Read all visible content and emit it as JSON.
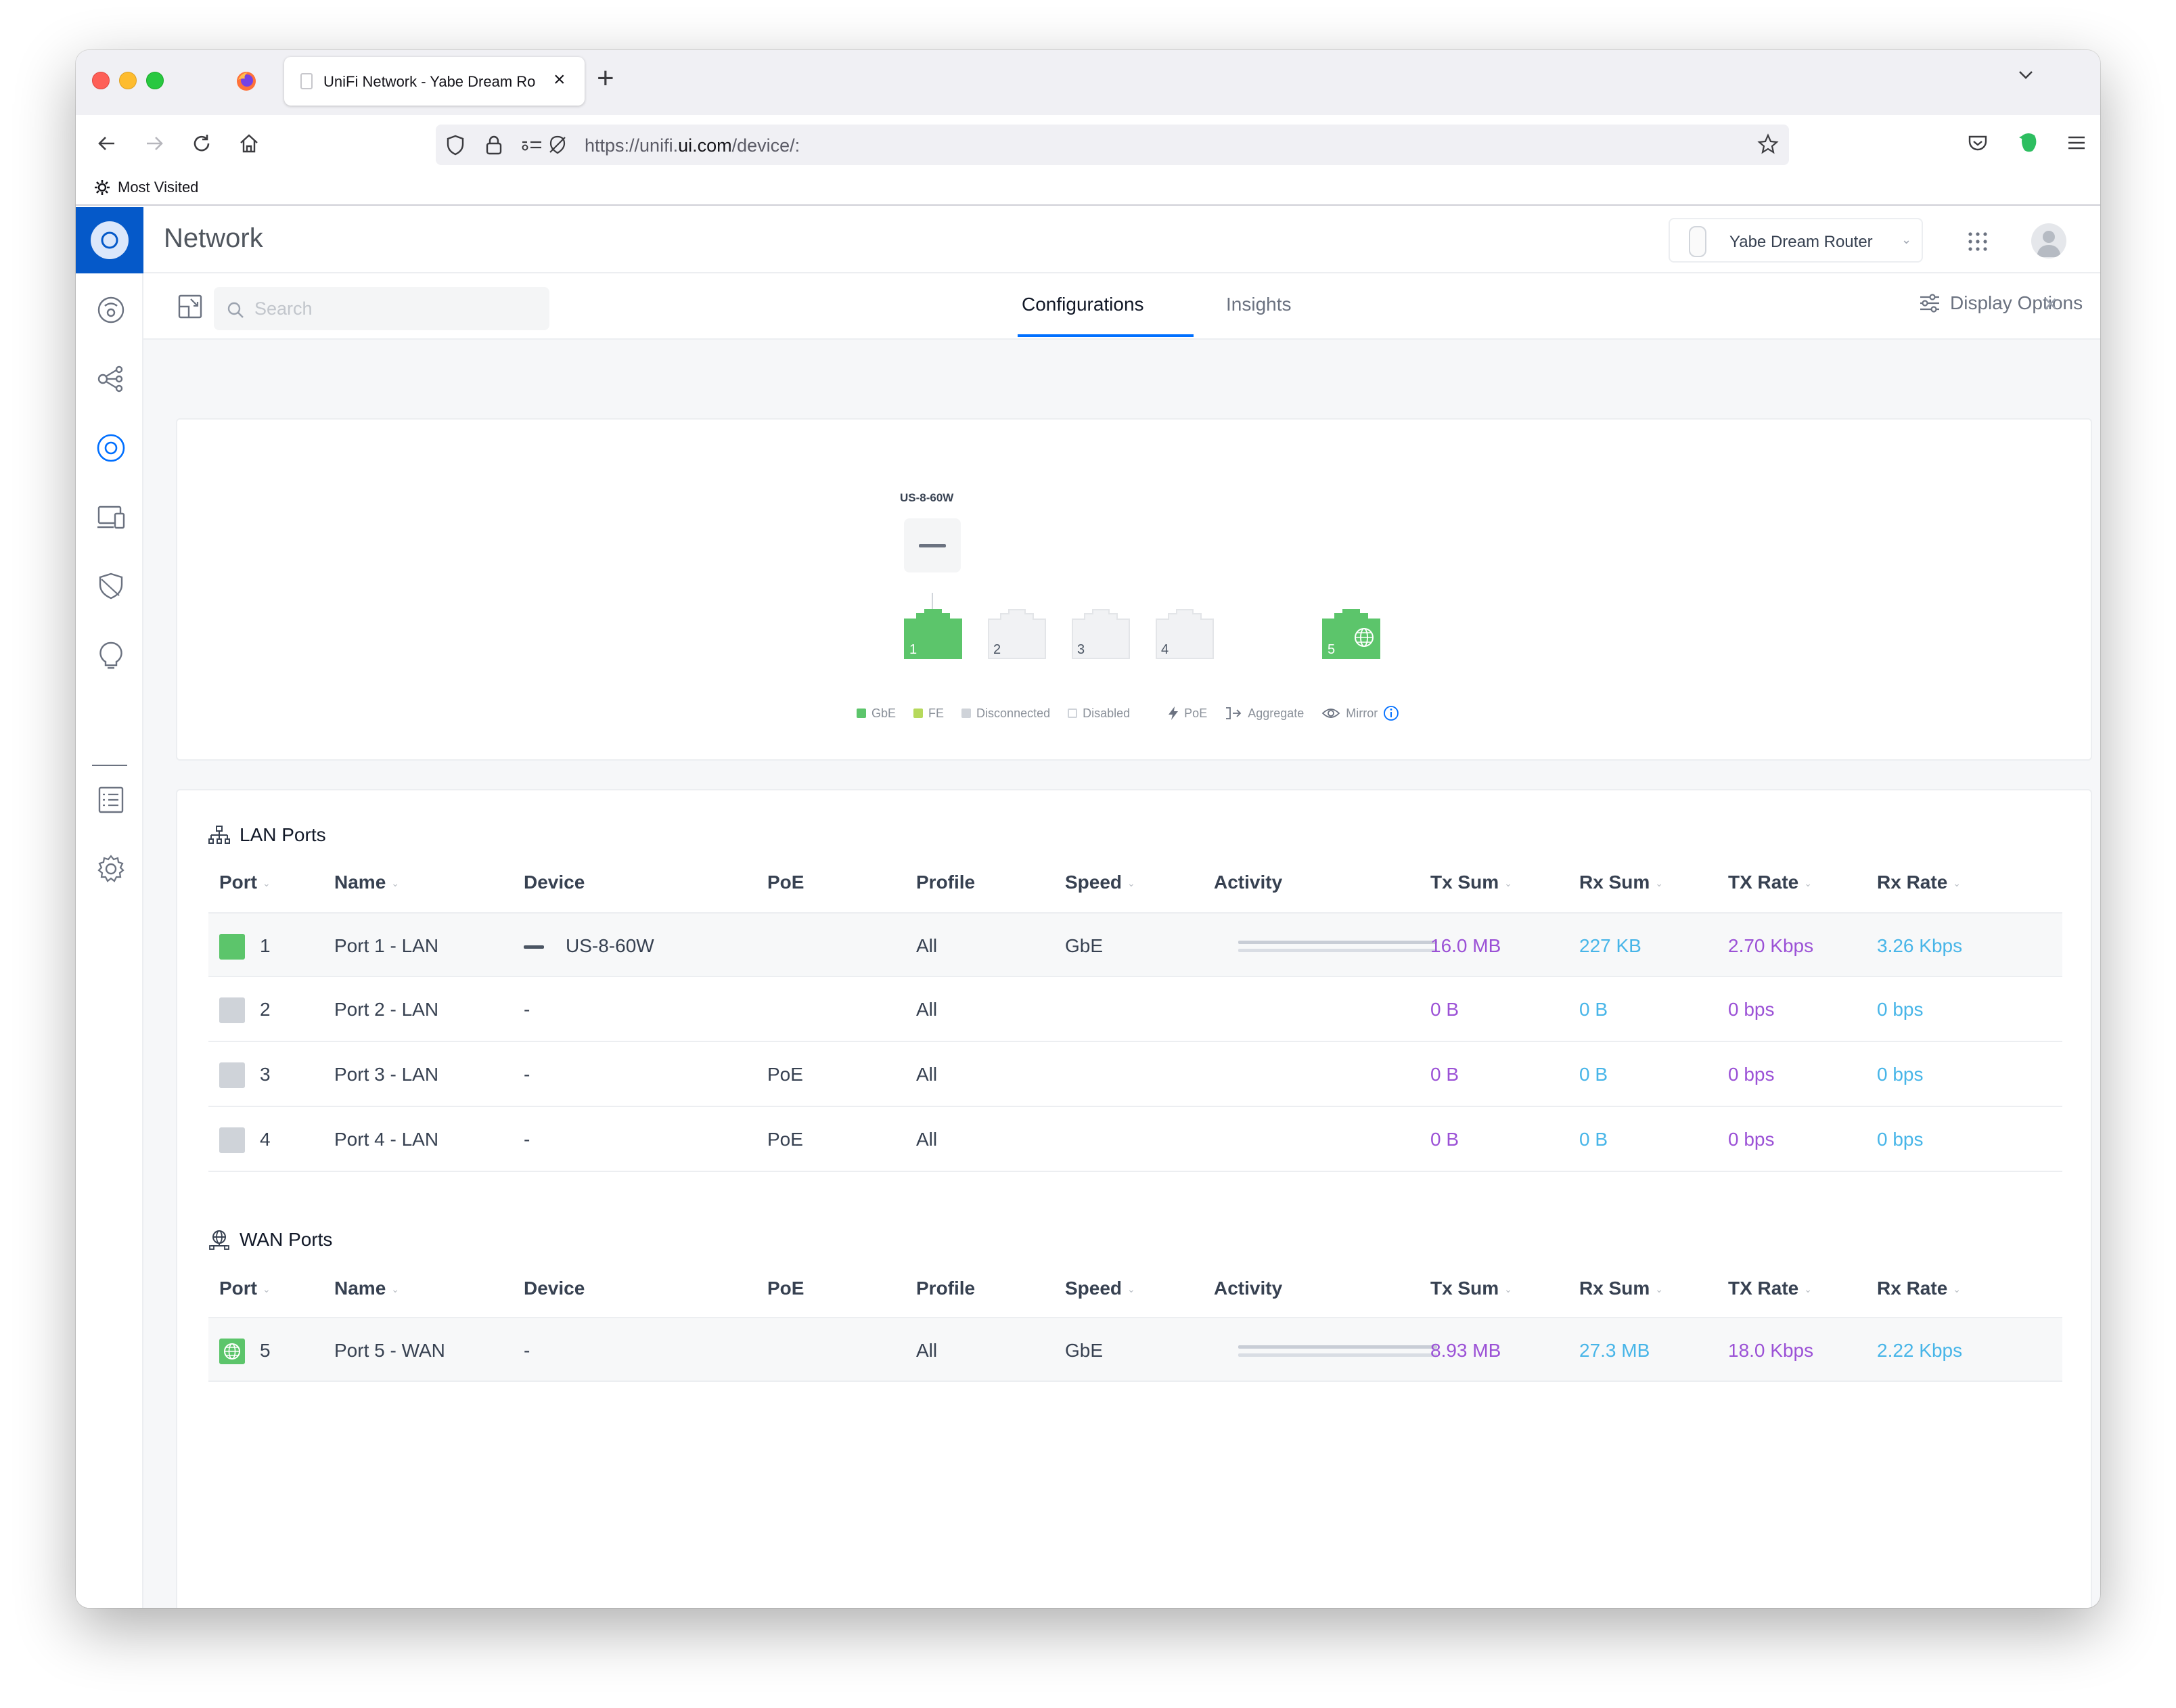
{
  "browser": {
    "tab_title": "UniFi Network - Yabe Dream Ro",
    "url_prefix": "https://unifi.",
    "url_domain": "ui.com",
    "url_suffix": "/device/:",
    "bookmark": "Most Visited"
  },
  "app": {
    "title": "Network",
    "device_selector": "Yabe Dream Router",
    "search_placeholder": "Search",
    "tabs": [
      "Configurations",
      "Insights"
    ],
    "active_tab": "Configurations",
    "display_options": "Display Options"
  },
  "topology": {
    "device_label": "US-8-60W",
    "ports": [
      {
        "num": "1",
        "state": "gbe"
      },
      {
        "num": "2",
        "state": "disconnected"
      },
      {
        "num": "3",
        "state": "disconnected"
      },
      {
        "num": "4",
        "state": "disconnected"
      },
      {
        "num": "5",
        "state": "wan-gbe"
      }
    ],
    "legend": [
      "GbE",
      "FE",
      "Disconnected",
      "Disabled",
      "PoE",
      "Aggregate",
      "Mirror"
    ]
  },
  "columns": [
    "Port",
    "Name",
    "Device",
    "PoE",
    "Profile",
    "Speed",
    "Activity",
    "Tx Sum",
    "Rx Sum",
    "TX Rate",
    "Rx Rate"
  ],
  "lan": {
    "title": "LAN Ports",
    "rows": [
      {
        "port": "1",
        "name": "Port 1 - LAN",
        "device": "US-8-60W",
        "poe": "",
        "profile": "All",
        "speed": "GbE",
        "tx_sum": "16.0 MB",
        "rx_sum": "227 KB",
        "tx_rate": "2.70 Kbps",
        "rx_rate": "3.26 Kbps"
      },
      {
        "port": "2",
        "name": "Port 2 - LAN",
        "device": "-",
        "poe": "",
        "profile": "All",
        "speed": "",
        "tx_sum": "0 B",
        "rx_sum": "0 B",
        "tx_rate": "0 bps",
        "rx_rate": "0 bps"
      },
      {
        "port": "3",
        "name": "Port 3 - LAN",
        "device": "-",
        "poe": "PoE",
        "profile": "All",
        "speed": "",
        "tx_sum": "0 B",
        "rx_sum": "0 B",
        "tx_rate": "0 bps",
        "rx_rate": "0 bps"
      },
      {
        "port": "4",
        "name": "Port 4 - LAN",
        "device": "-",
        "poe": "PoE",
        "profile": "All",
        "speed": "",
        "tx_sum": "0 B",
        "rx_sum": "0 B",
        "tx_rate": "0 bps",
        "rx_rate": "0 bps"
      }
    ]
  },
  "wan": {
    "title": "WAN Ports",
    "rows": [
      {
        "port": "5",
        "name": "Port 5 - WAN",
        "device": "-",
        "poe": "",
        "profile": "All",
        "speed": "GbE",
        "tx_sum": "8.93 MB",
        "rx_sum": "27.3 MB",
        "tx_rate": "18.0 Kbps",
        "rx_rate": "2.22 Kbps"
      }
    ]
  },
  "colors": {
    "gbe": "#5cc56b",
    "fe": "#b6d95c",
    "disconnected": "#cfd3d9",
    "accent": "#006fff",
    "tx": "#9b51d6",
    "rx": "#47b5e8"
  }
}
